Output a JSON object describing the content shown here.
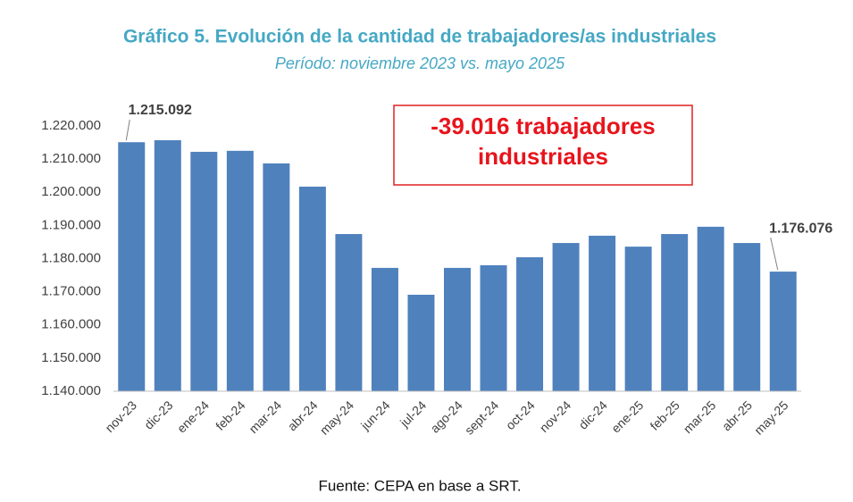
{
  "chart_data": {
    "type": "bar",
    "title": "Gráfico 5. Evolución de la cantidad de trabajadores/as industriales",
    "subtitle": "Período: noviembre 2023 vs. mayo 2025",
    "categories": [
      "nov-23",
      "dic-23",
      "ene-24",
      "feb-24",
      "mar-24",
      "abr-24",
      "may-24",
      "jun-24",
      "jul-24",
      "ago-24",
      "sept-24",
      "oct-24",
      "nov-24",
      "dic-24",
      "ene-25",
      "feb-25",
      "mar-25",
      "abr-25",
      "may-25"
    ],
    "values": [
      1215092,
      1215700,
      1212200,
      1212500,
      1208700,
      1201700,
      1187400,
      1177200,
      1169100,
      1177200,
      1178000,
      1180400,
      1184700,
      1186900,
      1183600,
      1187400,
      1189600,
      1184700,
      1176076
    ],
    "value_labels": [
      "1.215.092",
      null,
      null,
      null,
      null,
      null,
      null,
      null,
      null,
      null,
      null,
      null,
      null,
      null,
      null,
      null,
      null,
      null,
      "1.176.076"
    ],
    "color": "#4f81bd",
    "ylim": [
      1140000,
      1220000
    ],
    "yticks": [
      {
        "value": 1140000,
        "label": "1.140.000"
      },
      {
        "value": 1150000,
        "label": "1.150.000"
      },
      {
        "value": 1160000,
        "label": "1.160.000"
      },
      {
        "value": 1170000,
        "label": "1.170.000"
      },
      {
        "value": 1180000,
        "label": "1.180.000"
      },
      {
        "value": 1190000,
        "label": "1.190.000"
      },
      {
        "value": 1200000,
        "label": "1.200.000"
      },
      {
        "value": 1210000,
        "label": "1.210.000"
      },
      {
        "value": 1220000,
        "label": "1.220.000"
      }
    ],
    "grid": false,
    "annotation": [
      "-39.016 trabajadores",
      "industriales"
    ],
    "source": "Fuente: CEPA en base a SRT."
  }
}
